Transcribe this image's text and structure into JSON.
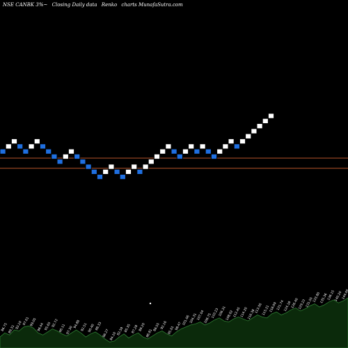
{
  "header": {
    "symbol": "NSE CANBK 3%",
    "glyph": "~",
    "description": "Closing Daily data",
    "chart_kind": "Renko",
    "site": "charts MunafaSutra.com"
  },
  "colors": {
    "background": "#000000",
    "up_brick": "#ffffff",
    "down_brick": "#1f6fe0",
    "brick_border": "#000000",
    "reference_line": "#b5542a",
    "volume_fill": "#0b2a0b",
    "volume_line": "#2e7d32",
    "label_text": "#ffffff"
  },
  "chart_data": {
    "type": "renko",
    "brick_direction": [
      "down",
      "up",
      "up",
      "down",
      "down",
      "up",
      "up",
      "down",
      "down",
      "down",
      "down",
      "up",
      "up",
      "down",
      "down",
      "down",
      "down",
      "down",
      "up",
      "up",
      "down",
      "down",
      "up",
      "up",
      "down",
      "up",
      "up",
      "up",
      "up",
      "up",
      "down",
      "down",
      "up",
      "up",
      "down",
      "up",
      "down",
      "down",
      "up",
      "up",
      "up",
      "down",
      "up",
      "up",
      "up",
      "up",
      "up",
      "up"
    ],
    "brick_level": [
      0,
      1,
      2,
      1,
      0,
      1,
      2,
      1,
      0,
      -1,
      -2,
      -1,
      0,
      -1,
      -2,
      -3,
      -4,
      -5,
      -4,
      -3,
      -4,
      -5,
      -4,
      -3,
      -4,
      -3,
      -2,
      -1,
      0,
      1,
      0,
      -1,
      0,
      1,
      0,
      1,
      0,
      -1,
      0,
      1,
      2,
      1,
      2,
      3,
      4,
      5,
      6,
      7
    ],
    "reference_lines": [
      {
        "level": -1.3
      },
      {
        "level": -3.3
      }
    ],
    "volume_series": [
      22,
      30,
      26,
      36,
      34,
      42,
      44,
      40,
      30,
      26,
      32,
      38,
      34,
      28,
      24,
      30,
      36,
      30,
      22,
      28,
      32,
      26,
      18,
      12,
      14,
      22,
      28,
      20,
      26,
      30,
      22,
      18,
      24,
      30,
      34,
      28,
      24,
      32,
      38,
      42,
      46,
      48,
      52,
      46,
      50,
      56,
      60,
      54,
      52,
      58,
      62,
      58,
      54,
      60,
      66,
      62,
      60,
      68,
      72,
      66,
      70,
      76,
      80,
      74,
      78,
      84,
      88,
      82,
      86,
      92,
      96,
      90,
      94,
      100
    ],
    "volume_labels": [
      "86.75",
      "89.31",
      "93.10",
      "97.01",
      "99.05",
      "98.44",
      "95.65",
      "92.72",
      "96.11",
      "97.30",
      "94.88",
      "92.51",
      "90.40",
      "88.33",
      "86.27",
      "84.10",
      "82.59",
      "85.35",
      "87.28",
      "89.20",
      "86.81",
      "88.55",
      "92.16",
      "95.01",
      "98.47",
      "101.06",
      "104.31",
      "107.04",
      "108.75",
      "110.23",
      "106.31",
      "108.02",
      "112.45",
      "114.20",
      "116.38",
      "113.56",
      "115.21",
      "118.09",
      "121.74",
      "124.18",
      "126.40",
      "129.22",
      "131.55",
      "133.80",
      "135.36",
      "138.15",
      "140.20",
      "144.06"
    ]
  }
}
